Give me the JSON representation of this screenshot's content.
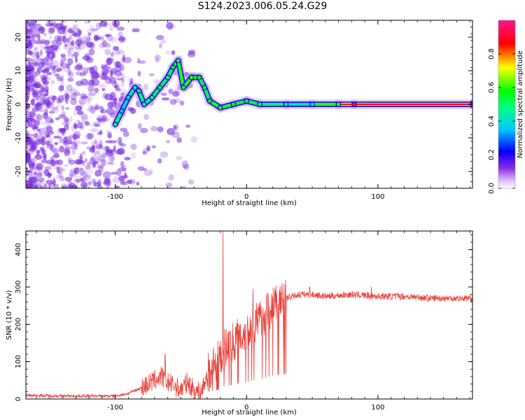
{
  "title": "S124.2023.006.05.24.G29",
  "colors": {
    "top_cloud": "#7a2be0",
    "snr_line": "#e8403a",
    "axes": "#000000"
  },
  "chart_data": [
    {
      "type": "heatmap",
      "name": "spectrogram",
      "xlabel": "Height of straight line (km)",
      "ylabel": "Frequency (Hz)",
      "xlim": [
        -168,
        172
      ],
      "ylim": [
        -25,
        25
      ],
      "xticks": [
        -100,
        0,
        100
      ],
      "xtick_labels": [
        "-100",
        "0",
        "100"
      ],
      "yticks": [
        -20,
        -10,
        0,
        10,
        20
      ],
      "ytick_labels": [
        "-20",
        "-10",
        "0",
        "10",
        "20"
      ],
      "ridge": [
        {
          "x": -100,
          "y": -6,
          "amp": 0.5
        },
        {
          "x": -95,
          "y": -2,
          "amp": 0.35
        },
        {
          "x": -90,
          "y": 2,
          "amp": 0.4
        },
        {
          "x": -85,
          "y": 5,
          "amp": 0.45
        },
        {
          "x": -82,
          "y": 4,
          "amp": 0.5
        },
        {
          "x": -78,
          "y": 0,
          "amp": 0.45
        },
        {
          "x": -72,
          "y": 2,
          "amp": 0.5
        },
        {
          "x": -66,
          "y": 5,
          "amp": 0.55
        },
        {
          "x": -60,
          "y": 8,
          "amp": 0.45
        },
        {
          "x": -56,
          "y": 11,
          "amp": 0.55
        },
        {
          "x": -52,
          "y": 13,
          "amp": 0.6
        },
        {
          "x": -48,
          "y": 5,
          "amp": 0.55
        },
        {
          "x": -42,
          "y": 8,
          "amp": 0.6
        },
        {
          "x": -36,
          "y": 8,
          "amp": 0.55
        },
        {
          "x": -32,
          "y": 5,
          "amp": 0.55
        },
        {
          "x": -28,
          "y": 1,
          "amp": 0.55
        },
        {
          "x": -20,
          "y": -1,
          "amp": 0.6
        },
        {
          "x": -10,
          "y": 0,
          "amp": 0.55
        },
        {
          "x": 0,
          "y": 1,
          "amp": 0.55
        },
        {
          "x": 10,
          "y": 0,
          "amp": 0.5
        },
        {
          "x": 30,
          "y": 0,
          "amp": 0.4
        },
        {
          "x": 50,
          "y": 0,
          "amp": 0.42
        },
        {
          "x": 70,
          "y": 0,
          "amp": 0.6
        },
        {
          "x": 82,
          "y": 0,
          "amp": 0.85
        },
        {
          "x": 172,
          "y": 0,
          "amp": 0.88
        }
      ],
      "colorbar": {
        "label": "Normalized spectral amplitude",
        "range": [
          0,
          1
        ],
        "ticks": [
          0.0,
          0.2,
          0.4,
          0.6,
          0.8
        ],
        "tick_labels": [
          "0.0",
          "0.2",
          "0.4",
          "0.6",
          "0.8"
        ]
      },
      "grid": false
    },
    {
      "type": "line",
      "name": "snr",
      "xlabel": "Height of straight line (km)",
      "ylabel": "SNR (10 * v/v)",
      "xlim": [
        -168,
        172
      ],
      "ylim": [
        0,
        450
      ],
      "xticks": [
        -100,
        0,
        100
      ],
      "xtick_labels": [
        "-100",
        "0",
        "100"
      ],
      "yticks": [
        0,
        100,
        200,
        300,
        400
      ],
      "ytick_labels": [
        "0",
        "100",
        "200",
        "300",
        "400"
      ],
      "x": [
        -168,
        -140,
        -100,
        -90,
        -80,
        -70,
        -65,
        -60,
        -50,
        -45,
        -40,
        -35,
        -28,
        -22,
        -18,
        -12,
        -5,
        0,
        5,
        10,
        15,
        20,
        30,
        40,
        50,
        60,
        80,
        100,
        120,
        140,
        160,
        172
      ],
      "y": [
        10,
        8,
        8,
        15,
        30,
        50,
        60,
        45,
        25,
        45,
        25,
        15,
        80,
        100,
        130,
        150,
        170,
        180,
        200,
        210,
        230,
        250,
        270,
        280,
        280,
        275,
        280,
        275,
        275,
        270,
        270,
        270
      ],
      "peaks": [
        {
          "x": -18,
          "y": 450
        },
        {
          "x": 5,
          "y": 295
        },
        {
          "x": 48,
          "y": 300
        },
        {
          "x": 95,
          "y": 300
        },
        {
          "x": -62,
          "y": 120
        }
      ],
      "grid": false
    }
  ]
}
